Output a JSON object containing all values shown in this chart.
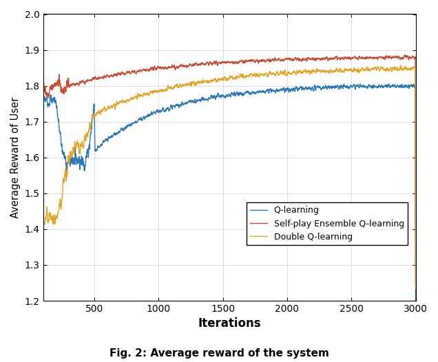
{
  "title": "Fig. 2: Average reward of the system",
  "xlabel": "Iterations",
  "ylabel": "Average Reward of User",
  "xlim": [
    100,
    3000
  ],
  "ylim": [
    1.2,
    2.0
  ],
  "yticks": [
    1.2,
    1.3,
    1.4,
    1.5,
    1.6,
    1.7,
    1.8,
    1.9,
    2.0
  ],
  "xticks": [
    500,
    1000,
    1500,
    2000,
    2500,
    3000
  ],
  "legend": [
    "Q-learning",
    "Self-play Ensemble Q-learning",
    "Double Q-learning"
  ],
  "colors": [
    "#2878b5",
    "#c84b31",
    "#e8a020"
  ],
  "line_width": 1.0,
  "figsize": [
    6.36,
    5.26
  ],
  "dpi": 100,
  "n_points": 3000,
  "seed": 7
}
